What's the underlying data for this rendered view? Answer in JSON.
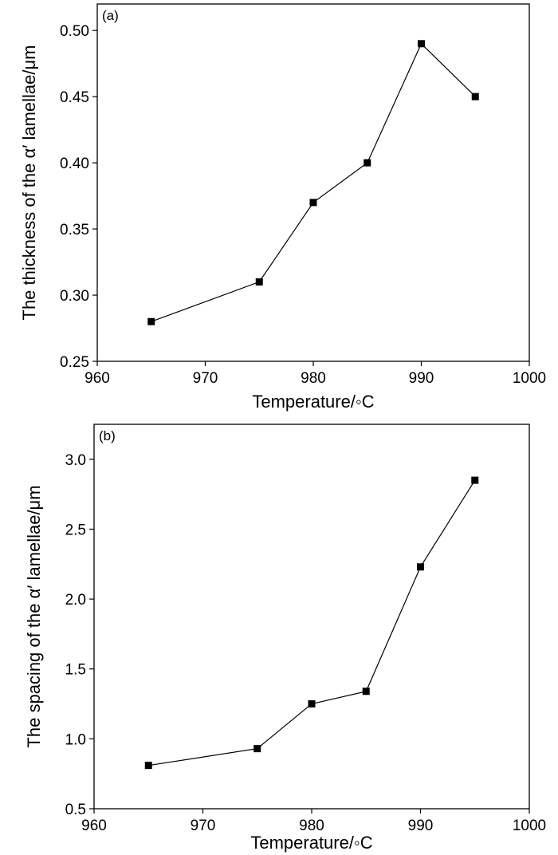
{
  "chart_data": [
    {
      "type": "line",
      "panel_label": "(a)",
      "xlabel": "Temperature/◦C",
      "ylabel": "The thickness of the α′ lamellae/μm",
      "xlim": [
        960,
        1000
      ],
      "ylim": [
        0.25,
        0.52
      ],
      "xticks": [
        960,
        970,
        980,
        990,
        1000
      ],
      "yticks": [
        0.25,
        0.3,
        0.35,
        0.4,
        0.45,
        0.5
      ],
      "ytick_labels": [
        "0.25",
        "0.30",
        "0.35",
        "0.40",
        "0.45",
        "0.50"
      ],
      "x": [
        965,
        975,
        980,
        985,
        990,
        995
      ],
      "series": [
        {
          "values": [
            0.28,
            0.31,
            0.37,
            0.4,
            0.49,
            0.45
          ],
          "color": "#000000",
          "marker": "square"
        }
      ]
    },
    {
      "type": "line",
      "panel_label": "(b)",
      "xlabel": "Temperature/◦C",
      "ylabel": "The spacing of the α′ lamellae/μm",
      "xlim": [
        960,
        1000
      ],
      "ylim": [
        0.5,
        3.25
      ],
      "xticks": [
        960,
        970,
        980,
        990,
        1000
      ],
      "yticks": [
        0.5,
        1.0,
        1.5,
        2.0,
        2.5,
        3.0
      ],
      "ytick_labels": [
        "0.5",
        "1.0",
        "1.5",
        "2.0",
        "2.5",
        "3.0"
      ],
      "x": [
        965,
        975,
        980,
        985,
        990,
        995
      ],
      "series": [
        {
          "values": [
            0.81,
            0.93,
            1.25,
            1.34,
            2.23,
            2.85
          ],
          "color": "#000000",
          "marker": "square"
        }
      ]
    }
  ]
}
